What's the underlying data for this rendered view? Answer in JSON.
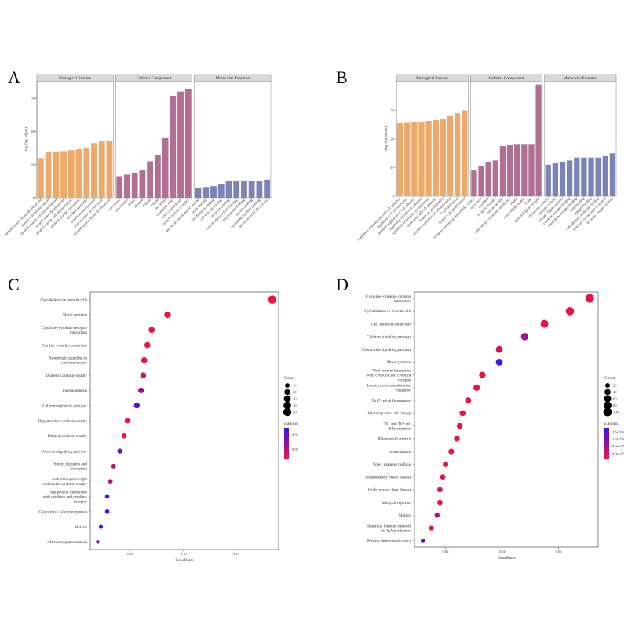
{
  "chart_data": [
    {
      "panel": "A",
      "type": "bar",
      "ylabel": "-log10(p.adjust)",
      "ylim": [
        0,
        70
      ],
      "yticks": [
        0,
        20,
        40,
        60
      ],
      "facets": [
        {
          "name": "Biological Process",
          "color": "#eda96a",
          "categories": [
            "skeletal muscle tissue development",
            "muscle cell differentiation",
            "skeletal muscle cell differentiation",
            "muscle tissue development",
            "striated muscle cell differentiation",
            "skeletal muscle contraction",
            "myofibril assembly",
            "muscle system process",
            "muscle organ development",
            "striated muscle tissue development"
          ],
          "values": [
            24,
            27.5,
            28,
            28.2,
            28.8,
            29.3,
            30,
            33,
            34,
            34.3
          ]
        },
        {
          "name": "Cellular Component",
          "color": "#b06f93",
          "categories": [
            "sarcomere",
            "sarcoplasm",
            "Z disc",
            "M band",
            "A band",
            "I band",
            "myofibril",
            "contractile fiber",
            "actin cytoskeleton",
            "muscle myosin complex"
          ],
          "values": [
            13,
            14,
            15,
            16.5,
            22,
            26,
            36,
            61.5,
            64,
            65.5
          ]
        },
        {
          "name": "Molecular Function",
          "color": "#7c84b6",
          "categories": [
            "structural constituent of muscle",
            "actin binding",
            "actin filament binding",
            "calcium ion binding",
            "troponin binding",
            "muscle alpha-actinin binding",
            "tropomyosin binding",
            "myosin binding",
            "cytoskeletal protein binding",
            "structural molecule activity"
          ],
          "values": [
            6,
            6.5,
            7,
            8,
            10,
            10,
            10,
            10,
            10,
            11
          ]
        }
      ]
    },
    {
      "panel": "B",
      "type": "bar",
      "ylabel": "-log10(p.adjust)",
      "ylim": [
        0,
        40
      ],
      "yticks": [
        0,
        10,
        20,
        30
      ],
      "facets": [
        {
          "name": "Biological Process",
          "color": "#eda96a",
          "categories": [
            "regulation of leukocyte cell-cell adhesion",
            "regulation of T cell activation",
            "positive regulation of cell adhesion",
            "regulation of cell-cell adhesion",
            "regulation of lymphocyte activation",
            "leukocyte cell-cell adhesion",
            "leukocyte proliferation",
            "positive regulation of cell activation",
            "T cell activation",
            "lymphocyte proliferation"
          ],
          "values": [
            25.5,
            25.6,
            25.8,
            26,
            26.3,
            26.6,
            27,
            28,
            29,
            30
          ]
        },
        {
          "name": "Cellular Component",
          "color": "#b06f93",
          "categories": [
            "collagen-containing extracellular matrix",
            "sarcomere",
            "myofibril",
            "receptor complex",
            "contractile fiber",
            "external side of plasma membrane",
            "I band",
            "extracellular matrix",
            "Z disc",
            "immunological synapse"
          ],
          "values": [
            9,
            10.5,
            12,
            12.5,
            17.5,
            17.8,
            18,
            18,
            18,
            39
          ]
        },
        {
          "name": "Molecular Function",
          "color": "#7c84b6",
          "categories": [
            "chemokine activity",
            "cytokine activity",
            "receptor ligand activity",
            "cytokine receptor binding",
            "chemokine receptor binding",
            "actin binding",
            "integrin binding",
            "cell adhesion molecule binding",
            "structural constituent of muscle",
            "immune receptor activity"
          ],
          "values": [
            11,
            11.5,
            12,
            12.5,
            13.5,
            13.5,
            13.5,
            13.5,
            14,
            15
          ]
        }
      ]
    },
    {
      "panel": "C",
      "type": "scatter",
      "xlabel": "GeneRatio",
      "xlim": [
        0.012,
        0.19
      ],
      "xticks": [
        {
          "v": 0.05,
          "label": "0.05"
        },
        {
          "v": 0.1,
          "label": "0.10"
        },
        {
          "v": 0.15,
          "label": "0.15"
        }
      ],
      "legend_count": {
        "title": "Count",
        "labels": [
          "10",
          "20",
          "30",
          "40",
          "50"
        ],
        "values": [
          10,
          20,
          30,
          40,
          50
        ]
      },
      "legend_padjust": {
        "title": "p.adjust",
        "labels": [
          "0.02",
          "0.01"
        ],
        "values": [
          0.02,
          0.01
        ],
        "min": 0.003,
        "max": 0.025
      },
      "points": [
        {
          "label": "Cytoskeleton in muscle cells",
          "x": 0.184,
          "count": 52,
          "padj": 0.0003
        },
        {
          "label": "Motor proteins",
          "x": 0.085,
          "count": 28,
          "padj": 0.001
        },
        {
          "label": "Cytokine−cytokine receptor\ninteraction",
          "x": 0.07,
          "count": 22,
          "padj": 0.002
        },
        {
          "label": "Cardiac muscle contraction",
          "x": 0.066,
          "count": 21,
          "padj": 0.002
        },
        {
          "label": "Adrenergic signaling in\ncardiomyocytes",
          "x": 0.063,
          "count": 20,
          "padj": 0.004
        },
        {
          "label": "Diabetic cardiomyopathy",
          "x": 0.062,
          "count": 20,
          "padj": 0.006
        },
        {
          "label": "Thermogenesis",
          "x": 0.06,
          "count": 19,
          "padj": 0.015
        },
        {
          "label": "Calcium signaling pathway",
          "x": 0.056,
          "count": 18,
          "padj": 0.022
        },
        {
          "label": "Hypertrophic cardiomyopathy",
          "x": 0.047,
          "count": 15,
          "padj": 0.002
        },
        {
          "label": "Dilated cardiomyopathy",
          "x": 0.044,
          "count": 14,
          "padj": 0.003
        },
        {
          "label": "Oxytocin signaling pathway",
          "x": 0.04,
          "count": 13,
          "padj": 0.019
        },
        {
          "label": "Protein digestion and\nabsorption",
          "x": 0.034,
          "count": 11,
          "padj": 0.009
        },
        {
          "label": "Arrhythmogenic right\nventricular cardiomyopathy",
          "x": 0.031,
          "count": 10,
          "padj": 0.011
        },
        {
          "label": "Viral protein interaction\nwith cytokine and cytokine\nreceptor",
          "x": 0.028,
          "count": 9,
          "padj": 0.022
        },
        {
          "label": "Glycolysis / Gluconeogenesis",
          "x": 0.028,
          "count": 9,
          "padj": 0.022
        },
        {
          "label": "Malaria",
          "x": 0.022,
          "count": 7,
          "padj": 0.025
        },
        {
          "label": "African trypanosomiasis",
          "x": 0.019,
          "count": 6,
          "padj": 0.015
        }
      ]
    },
    {
      "panel": "D",
      "type": "scatter",
      "xlabel": "GeneRatio",
      "xlim": [
        0.009,
        0.074
      ],
      "xticks": [
        {
          "v": 0.02,
          "label": "0.02"
        },
        {
          "v": 0.04,
          "label": "0.04"
        },
        {
          "v": 0.06,
          "label": "0.06"
        }
      ],
      "legend_count": {
        "title": "Count",
        "labels": [
          "20",
          "40",
          "60",
          "80",
          "100"
        ],
        "values": [
          20,
          40,
          60,
          80,
          100
        ]
      },
      "legend_padjust": {
        "title": "p.adjust",
        "labels": [
          "1.6e−06",
          "1.2e−06",
          "8.0e−07",
          "4.0e−07"
        ],
        "values": [
          1.6e-06,
          1.2e-06,
          8e-07,
          4e-07
        ],
        "min": 1e-07,
        "max": 1.8e-06
      },
      "points": [
        {
          "label": "Cytokine−cytokine receptor\ninteraction",
          "x": 0.071,
          "count": 105,
          "padj": 2e-07
        },
        {
          "label": "Cytoskeleton in muscle cells",
          "x": 0.064,
          "count": 95,
          "padj": 2e-07
        },
        {
          "label": "Cell adhesion molecules",
          "x": 0.055,
          "count": 82,
          "padj": 2e-07
        },
        {
          "label": "Calcium signaling pathway",
          "x": 0.048,
          "count": 70,
          "padj": 9e-07
        },
        {
          "label": "Chemokine signaling pathway",
          "x": 0.039,
          "count": 58,
          "padj": 4e-07
        },
        {
          "label": "Motor proteins",
          "x": 0.039,
          "count": 58,
          "padj": 1.7e-06
        },
        {
          "label": "Viral protein interaction\nwith cytokine and cytokine\nreceptor",
          "x": 0.033,
          "count": 48,
          "padj": 2e-07
        },
        {
          "label": "Leukocyte transendothelial\nmigration",
          "x": 0.031,
          "count": 46,
          "padj": 2e-07
        },
        {
          "label": "Th17 cell differentiation",
          "x": 0.028,
          "count": 42,
          "padj": 2e-07
        },
        {
          "label": "Hematopoietic cell lineage",
          "x": 0.026,
          "count": 38,
          "padj": 2e-07
        },
        {
          "label": "Th1 and Th2 cell\ndifferentiation",
          "x": 0.025,
          "count": 36,
          "padj": 2e-07
        },
        {
          "label": "Rheumatoid arthritis",
          "x": 0.024,
          "count": 35,
          "padj": 2e-07
        },
        {
          "label": "Leishmaniasis",
          "x": 0.022,
          "count": 33,
          "padj": 2e-07
        },
        {
          "label": "Type I diabetes mellitus",
          "x": 0.02,
          "count": 30,
          "padj": 2e-07
        },
        {
          "label": "Inflammatory bowel disease",
          "x": 0.019,
          "count": 28,
          "padj": 2e-07
        },
        {
          "label": "Graft−versus−host disease",
          "x": 0.018,
          "count": 27,
          "padj": 2e-07
        },
        {
          "label": "Allograft rejection",
          "x": 0.018,
          "count": 27,
          "padj": 2e-07
        },
        {
          "label": "Malaria",
          "x": 0.017,
          "count": 24,
          "padj": 7e-07
        },
        {
          "label": "Intestinal immune network\nfor IgA production",
          "x": 0.015,
          "count": 22,
          "padj": 2e-07
        },
        {
          "label": "Primary immunodeficiency",
          "x": 0.012,
          "count": 18,
          "padj": 1.6e-06
        }
      ]
    }
  ]
}
